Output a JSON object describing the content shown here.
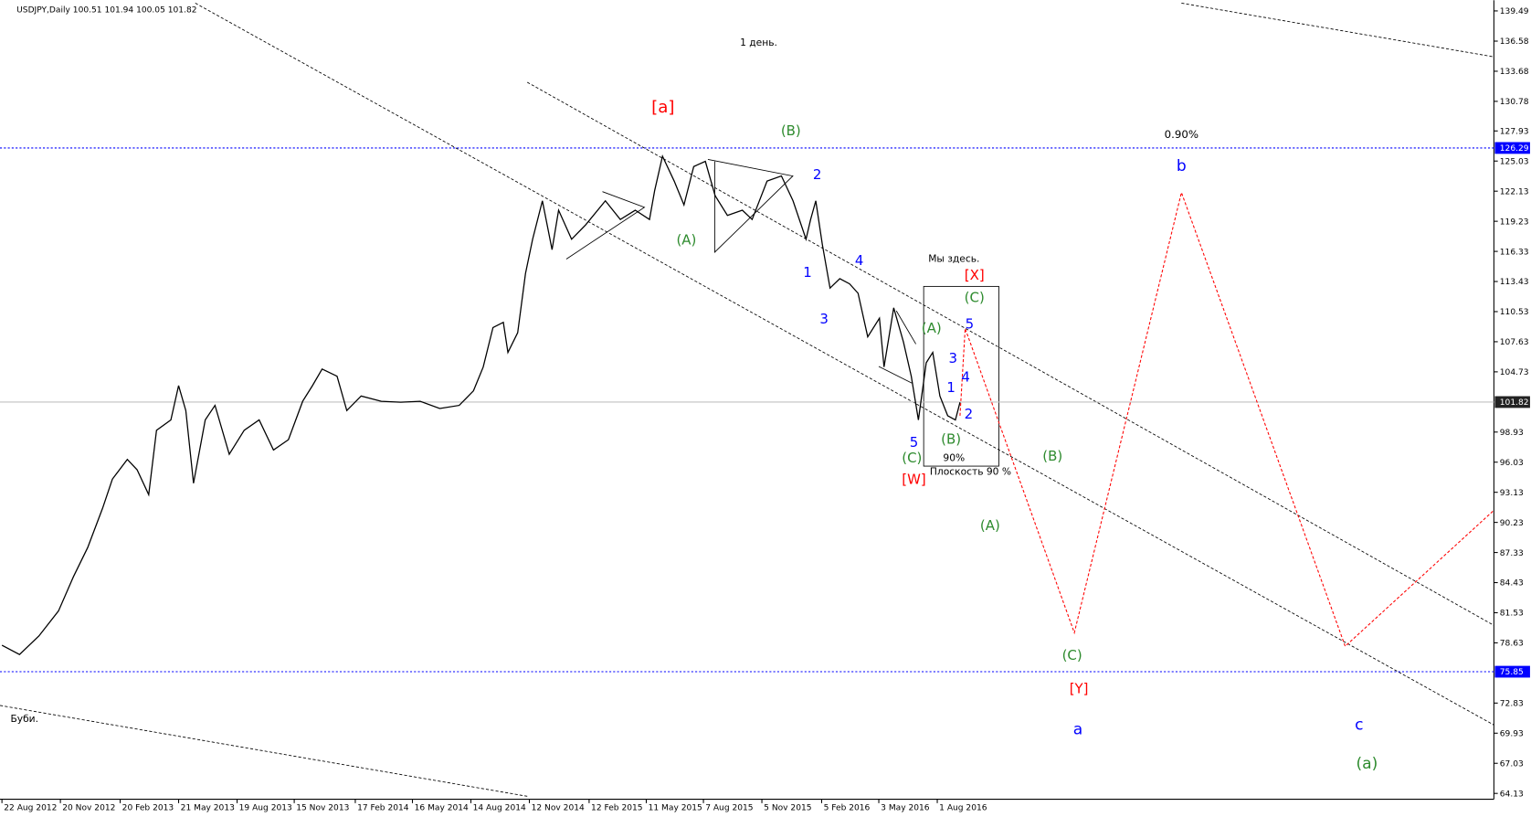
{
  "chart_data": {
    "type": "line",
    "title": "USDJPY,Daily  100.51 101.94 100.05 101.82",
    "xlim": [
      "2012-08-19",
      "2018-12-06"
    ],
    "ylim": [
      63.57,
      140.24
    ],
    "xticks": [
      {
        "value": "2012-08-22",
        "label": "22 Aug 2012"
      },
      {
        "value": "2012-11-20",
        "label": "20 Nov 2012"
      },
      {
        "value": "2013-02-20",
        "label": "20 Feb 2013"
      },
      {
        "value": "2013-05-21",
        "label": "21 May 2013"
      },
      {
        "value": "2013-08-19",
        "label": "19 Aug 2013"
      },
      {
        "value": "2013-11-15",
        "label": "15 Nov 2013"
      },
      {
        "value": "2014-02-17",
        "label": "17 Feb 2014"
      },
      {
        "value": "2014-05-16",
        "label": "16 May 2014"
      },
      {
        "value": "2014-08-14",
        "label": "14 Aug 2014"
      },
      {
        "value": "2014-11-12",
        "label": "12 Nov 2014"
      },
      {
        "value": "2015-02-12",
        "label": "12 Feb 2015"
      },
      {
        "value": "2015-05-11",
        "label": "11 May 2015"
      },
      {
        "value": "2015-08-07",
        "label": "7 Aug 2015"
      },
      {
        "value": "2015-11-05",
        "label": "5 Nov 2015"
      },
      {
        "value": "2016-02-05",
        "label": "5 Feb 2016"
      },
      {
        "value": "2016-05-03",
        "label": "3 May 2016"
      },
      {
        "value": "2016-08-01",
        "label": "1 Aug 2016"
      }
    ],
    "yticks": [
      139.49,
      136.58,
      133.68,
      130.78,
      127.93,
      125.03,
      122.13,
      119.23,
      116.33,
      113.43,
      110.53,
      107.63,
      104.73,
      98.93,
      96.03,
      93.13,
      90.23,
      87.33,
      84.43,
      81.53,
      78.63,
      72.83,
      69.93,
      67.03,
      64.13
    ],
    "levels": [
      {
        "value": 126.29,
        "color": "#0000ff"
      },
      {
        "value": 101.82,
        "color": "#c0c0c0"
      },
      {
        "value": 75.85,
        "color": "#0000ff"
      }
    ],
    "series": [
      {
        "color": "#000000",
        "x": [
          "2012-08-22",
          "2012-09-18",
          "2012-10-18",
          "2012-11-17",
          "2012-12-10",
          "2013-01-01",
          "2013-01-24",
          "2013-02-08",
          "2013-03-03",
          "2013-03-18",
          "2013-04-05",
          "2013-04-17",
          "2013-05-09",
          "2013-05-21",
          "2013-06-01",
          "2013-06-13",
          "2013-07-01",
          "2013-07-16",
          "2013-08-07",
          "2013-08-30",
          "2013-09-22",
          "2013-10-14",
          "2013-11-06",
          "2013-11-28",
          "2013-12-13",
          "2013-12-28",
          "2014-01-20",
          "2014-02-04",
          "2014-02-26",
          "2014-03-29",
          "2014-04-28",
          "2014-05-28",
          "2014-06-27",
          "2014-07-27",
          "2014-08-18",
          "2014-09-02",
          "2014-09-17",
          "2014-10-03",
          "2014-10-10",
          "2014-10-25",
          "2014-11-06",
          "2014-11-17",
          "2014-12-02",
          "2014-12-17",
          "2014-12-27",
          "2015-01-16",
          "2015-02-07",
          "2015-03-09",
          "2015-04-01",
          "2015-04-24",
          "2015-05-16",
          "2015-05-24",
          "2015-06-05",
          "2015-06-23",
          "2015-07-08",
          "2015-07-23",
          "2015-08-10",
          "2015-08-25",
          "2015-09-13",
          "2015-10-06",
          "2015-10-21",
          "2015-11-13",
          "2015-12-05",
          "2015-12-23",
          "2016-01-12",
          "2016-01-19",
          "2016-01-27",
          "2016-02-06",
          "2016-02-18",
          "2016-03-04",
          "2016-03-19",
          "2016-04-01",
          "2016-04-16",
          "2016-05-04",
          "2016-05-11",
          "2016-05-26",
          "2016-06-10",
          "2016-06-22",
          "2016-07-03",
          "2016-07-15",
          "2016-07-25",
          "2016-08-05",
          "2016-08-17",
          "2016-08-29",
          "2016-09-05"
        ],
        "values": [
          78.4,
          77.5,
          79.3,
          81.7,
          85.0,
          87.8,
          91.6,
          94.4,
          96.3,
          95.3,
          92.9,
          99.1,
          100.1,
          103.4,
          101.0,
          94.0,
          100.1,
          101.5,
          96.8,
          99.1,
          100.1,
          97.2,
          98.2,
          101.9,
          103.4,
          105.0,
          104.3,
          101.0,
          102.4,
          101.9,
          101.8,
          101.9,
          101.2,
          101.5,
          102.9,
          105.2,
          109.0,
          109.5,
          106.6,
          108.5,
          114.2,
          117.5,
          121.2,
          116.5,
          120.3,
          117.5,
          118.9,
          121.2,
          119.4,
          120.3,
          119.4,
          122.2,
          125.5,
          123.1,
          120.8,
          124.5,
          125.0,
          121.7,
          119.8,
          120.3,
          119.4,
          123.1,
          123.6,
          121.2,
          117.5,
          119.4,
          121.2,
          117.0,
          112.8,
          113.7,
          113.2,
          112.3,
          108.1,
          109.9,
          105.2,
          110.9,
          107.6,
          104.3,
          100.1,
          105.6,
          106.6,
          102.4,
          100.5,
          100.1,
          101.8
        ]
      },
      {
        "color": "#ff0000",
        "dashed": true,
        "x": [
          "2016-09-05",
          "2016-09-13",
          "2017-02-28",
          "2017-08-12",
          "2018-04-21",
          "2018-12-06"
        ],
        "values": [
          100.5,
          108.9,
          79.6,
          122.0,
          78.3,
          91.4
        ]
      }
    ],
    "annotations": [
      {
        "text": "1 день.",
        "color": "#000000"
      },
      {
        "text": "[a]",
        "color": "#ff0000"
      },
      {
        "text": "(B)",
        "color": "#2e8b2e"
      },
      {
        "text": "0.90%",
        "color": "#000000"
      },
      {
        "text": "b",
        "color": "#0000ff"
      },
      {
        "text": "2",
        "color": "#0000ff"
      },
      {
        "text": "(A)",
        "color": "#2e8b2e"
      },
      {
        "text": "Мы здесь.",
        "color": "#000000"
      },
      {
        "text": "4",
        "color": "#0000ff"
      },
      {
        "text": "1",
        "color": "#0000ff"
      },
      {
        "text": "[X]",
        "color": "#ff0000"
      },
      {
        "text": "(C)",
        "color": "#2e8b2e"
      },
      {
        "text": "3",
        "color": "#0000ff"
      },
      {
        "text": "(A)",
        "color": "#2e8b2e"
      },
      {
        "text": "5",
        "color": "#0000ff"
      },
      {
        "text": "3",
        "color": "#0000ff"
      },
      {
        "text": "4",
        "color": "#0000ff"
      },
      {
        "text": "1",
        "color": "#0000ff"
      },
      {
        "text": "2",
        "color": "#0000ff"
      },
      {
        "text": "5",
        "color": "#0000ff"
      },
      {
        "text": "(B)",
        "color": "#2e8b2e"
      },
      {
        "text": "(B)",
        "color": "#2e8b2e"
      },
      {
        "text": "(C)",
        "color": "#2e8b2e"
      },
      {
        "text": "90%",
        "color": "#000000"
      },
      {
        "text": "Плоскость 90 %",
        "color": "#000000"
      },
      {
        "text": "[W]",
        "color": "#ff0000"
      },
      {
        "text": "(A)",
        "color": "#2e8b2e"
      },
      {
        "text": "(C)",
        "color": "#2e8b2e"
      },
      {
        "text": "[Y]",
        "color": "#ff0000"
      },
      {
        "text": "Буби.",
        "color": "#000000"
      },
      {
        "text": "a",
        "color": "#0000ff"
      },
      {
        "text": "c",
        "color": "#0000ff"
      },
      {
        "text": "(a)",
        "color": "#2e8b2e"
      }
    ]
  }
}
